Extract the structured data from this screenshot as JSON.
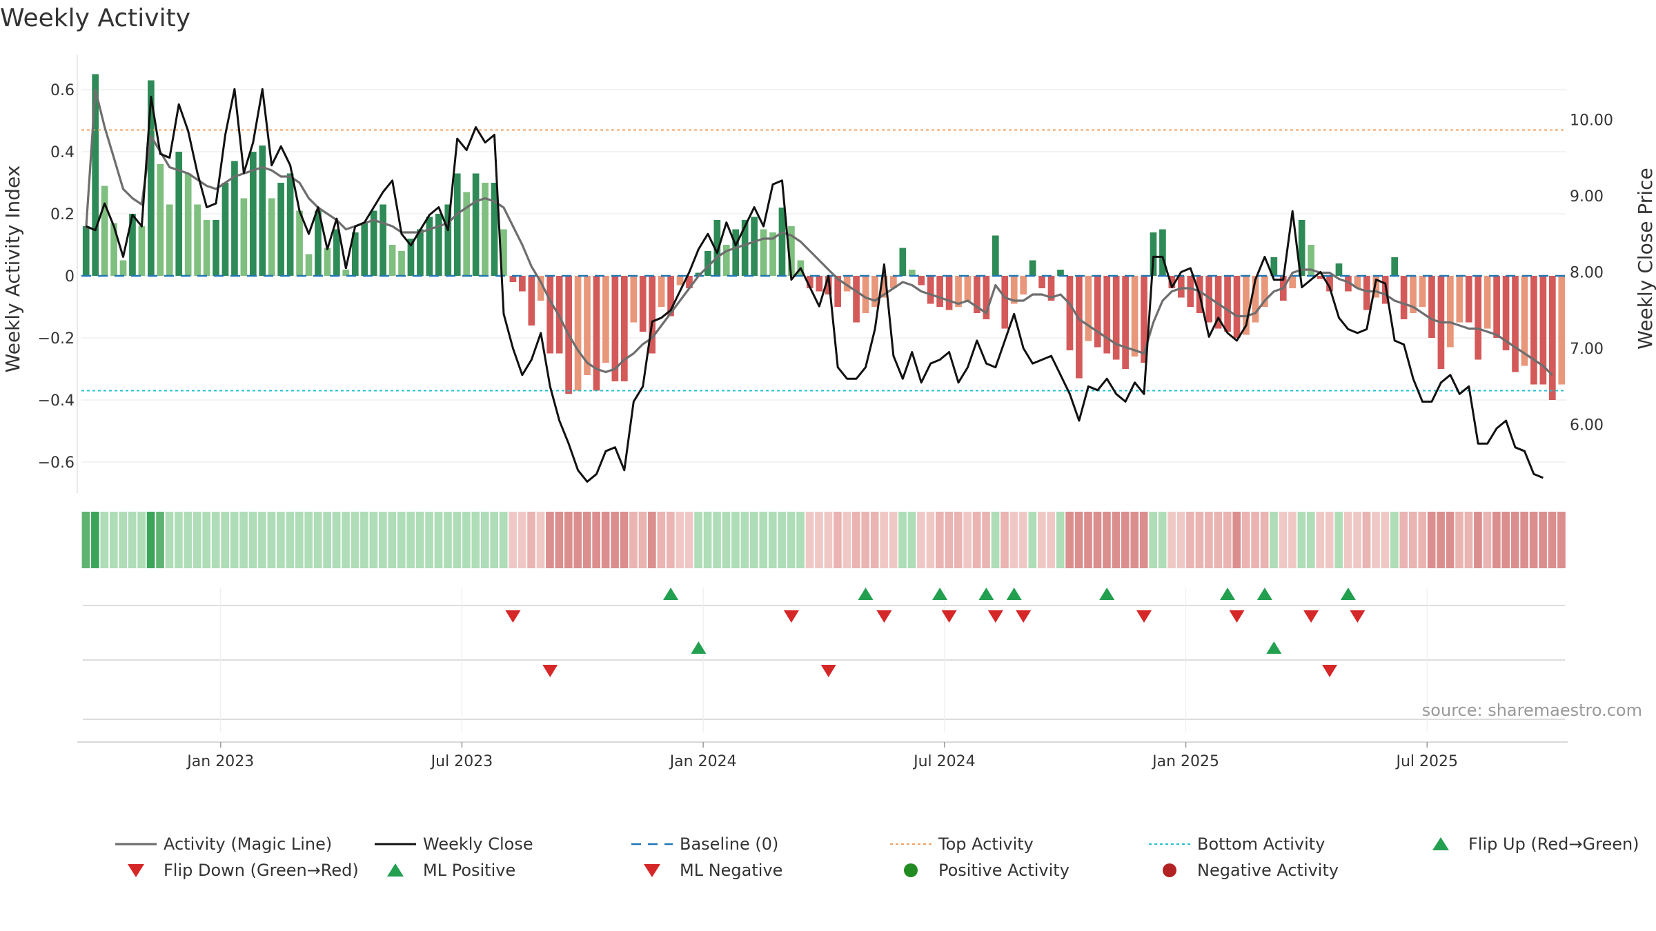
{
  "chart_data": {
    "type": "bar+line",
    "title": "Weekly Activity",
    "ylabel_left": "Weekly Activity Index",
    "ylabel_right": "Weekly Close Price",
    "source": "source: sharemaestro.com",
    "left_axis": {
      "ylim": [
        -0.7,
        0.7
      ],
      "ticks": [
        0.6,
        0.4,
        0.2,
        0,
        -0.2,
        -0.4,
        -0.6
      ],
      "tick_labels": [
        "0.6",
        "0.4",
        "0.2",
        "0",
        "−0.2",
        "−0.4",
        "−0.6"
      ]
    },
    "right_axis": {
      "ylim": [
        5.1,
        10.8
      ],
      "ticks": [
        10,
        9,
        8,
        7,
        6
      ],
      "tick_labels": [
        "10.00",
        "9.00",
        "8.00",
        "7.00",
        "6.00"
      ]
    },
    "x_axis": {
      "tick_labels": [
        "Jan 2023",
        "Jul 2023",
        "Jan 2024",
        "Jul 2024",
        "Jan 2025",
        "Jul 2025"
      ],
      "tick_weeks": [
        15,
        41,
        67,
        93,
        119,
        145
      ]
    },
    "top_activity": 0.47,
    "bottom_activity": -0.37,
    "baseline": 0,
    "colors": {
      "green_strong": "#2e8b57",
      "green_light": "#7fbf7f",
      "red_strong": "#d45a5a",
      "red_light": "#e8977a",
      "magic_line": "#6e6e6e",
      "close_line": "#111111",
      "baseline": "#1f77b4",
      "top": "#f0a060",
      "bottom": "#20c0d0",
      "marker_up": "#22a050",
      "marker_down": "#d62728",
      "positive_dot": "#228b22",
      "negative_dot": "#b22222"
    },
    "weekly_activity": [
      0.16,
      0.65,
      0.29,
      0.17,
      0.05,
      0.2,
      0.16,
      0.63,
      0.36,
      0.23,
      0.4,
      0.33,
      0.23,
      0.18,
      0.18,
      0.3,
      0.37,
      0.25,
      0.4,
      0.42,
      0.25,
      0.3,
      0.33,
      0.21,
      0.07,
      0.21,
      0.09,
      0.15,
      0.02,
      0.14,
      0.17,
      0.21,
      0.23,
      0.1,
      0.08,
      0.12,
      0.15,
      0.19,
      0.2,
      0.23,
      0.33,
      0.27,
      0.33,
      0.3,
      0.3,
      0.15,
      -0.02,
      -0.05,
      -0.16,
      -0.08,
      -0.25,
      -0.25,
      -0.38,
      -0.37,
      -0.32,
      -0.37,
      -0.28,
      -0.34,
      -0.34,
      -0.15,
      -0.18,
      -0.25,
      -0.1,
      -0.13,
      -0.03,
      -0.04,
      0.01,
      0.08,
      0.18,
      0.1,
      0.15,
      0.18,
      0.19,
      0.15,
      0.14,
      0.22,
      0.16,
      0.05,
      -0.04,
      -0.05,
      -0.06,
      -0.1,
      -0.05,
      -0.15,
      -0.12,
      -0.1,
      -0.07,
      -0.04,
      0.09,
      0.02,
      -0.03,
      -0.09,
      -0.1,
      -0.11,
      -0.1,
      -0.08,
      -0.12,
      -0.14,
      0.13,
      -0.17,
      -0.09,
      -0.06,
      0.05,
      -0.04,
      -0.08,
      0.02,
      -0.24,
      -0.33,
      -0.21,
      -0.23,
      -0.25,
      -0.27,
      -0.3,
      -0.26,
      -0.28,
      0.14,
      0.15,
      -0.04,
      -0.07,
      -0.1,
      -0.12,
      -0.15,
      -0.17,
      -0.18,
      -0.2,
      -0.19,
      -0.15,
      -0.1,
      0.06,
      -0.08,
      -0.04,
      0.18,
      0.1,
      -0.01,
      -0.05,
      0.04,
      -0.05,
      -0.04,
      -0.11,
      -0.07,
      -0.09,
      0.06,
      -0.14,
      -0.12,
      -0.1,
      -0.2,
      -0.3,
      -0.23,
      -0.15,
      -0.15,
      -0.27,
      -0.17,
      -0.2,
      -0.24,
      -0.31,
      -0.29,
      -0.35,
      -0.35,
      -0.4,
      -0.35
    ],
    "magic_line": [
      0.15,
      0.6,
      0.48,
      0.38,
      0.28,
      0.25,
      0.23,
      0.45,
      0.4,
      0.35,
      0.34,
      0.33,
      0.31,
      0.29,
      0.28,
      0.3,
      0.32,
      0.33,
      0.34,
      0.35,
      0.34,
      0.32,
      0.32,
      0.3,
      0.25,
      0.22,
      0.2,
      0.18,
      0.15,
      0.16,
      0.17,
      0.18,
      0.17,
      0.16,
      0.14,
      0.14,
      0.14,
      0.15,
      0.16,
      0.17,
      0.2,
      0.22,
      0.24,
      0.25,
      0.24,
      0.22,
      0.16,
      0.1,
      0.03,
      -0.02,
      -0.08,
      -0.13,
      -0.19,
      -0.24,
      -0.28,
      -0.3,
      -0.31,
      -0.3,
      -0.27,
      -0.25,
      -0.22,
      -0.2,
      -0.16,
      -0.12,
      -0.08,
      -0.04,
      0.0,
      0.03,
      0.06,
      0.08,
      0.09,
      0.1,
      0.11,
      0.12,
      0.12,
      0.14,
      0.13,
      0.11,
      0.08,
      0.05,
      0.02,
      -0.01,
      -0.03,
      -0.05,
      -0.07,
      -0.08,
      -0.06,
      -0.04,
      -0.02,
      -0.03,
      -0.05,
      -0.06,
      -0.07,
      -0.08,
      -0.09,
      -0.08,
      -0.1,
      -0.12,
      -0.03,
      -0.07,
      -0.08,
      -0.08,
      -0.06,
      -0.06,
      -0.07,
      -0.06,
      -0.09,
      -0.14,
      -0.16,
      -0.18,
      -0.2,
      -0.22,
      -0.23,
      -0.24,
      -0.25,
      -0.15,
      -0.08,
      -0.05,
      -0.04,
      -0.04,
      -0.05,
      -0.07,
      -0.09,
      -0.11,
      -0.13,
      -0.13,
      -0.12,
      -0.08,
      -0.05,
      -0.04,
      0.01,
      0.02,
      0.02,
      0.01,
      0.01,
      -0.01,
      -0.02,
      -0.04,
      -0.05,
      -0.05,
      -0.06,
      -0.08,
      -0.09,
      -0.1,
      -0.12,
      -0.14,
      -0.15,
      -0.15,
      -0.16,
      -0.17,
      -0.17,
      -0.18,
      -0.19,
      -0.21,
      -0.23,
      -0.25,
      -0.27,
      -0.29,
      -0.32
    ],
    "weekly_close": [
      8.6,
      8.55,
      8.9,
      8.6,
      8.2,
      8.75,
      8.6,
      10.3,
      9.55,
      9.5,
      10.2,
      9.85,
      9.3,
      8.85,
      8.9,
      9.8,
      10.4,
      9.3,
      9.7,
      10.4,
      9.4,
      9.65,
      9.4,
      8.8,
      8.5,
      8.85,
      8.3,
      8.7,
      8.05,
      8.6,
      8.65,
      8.85,
      9.05,
      9.2,
      8.5,
      8.35,
      8.55,
      8.75,
      8.85,
      8.55,
      9.75,
      9.6,
      9.9,
      9.7,
      9.8,
      7.45,
      7.0,
      6.65,
      6.85,
      7.2,
      6.5,
      6.05,
      5.75,
      5.4,
      5.25,
      5.35,
      5.65,
      5.7,
      5.4,
      6.3,
      6.5,
      7.35,
      7.4,
      7.5,
      7.75,
      8.0,
      8.3,
      8.5,
      8.25,
      8.65,
      8.35,
      8.6,
      8.85,
      8.6,
      9.15,
      9.2,
      7.9,
      8.05,
      7.8,
      7.55,
      7.95,
      6.75,
      6.6,
      6.6,
      6.75,
      7.25,
      8.1,
      6.9,
      6.6,
      6.95,
      6.55,
      6.8,
      6.85,
      6.95,
      6.55,
      6.75,
      7.1,
      6.8,
      6.75,
      7.1,
      7.45,
      7.0,
      6.8,
      6.85,
      6.9,
      6.65,
      6.4,
      6.05,
      6.5,
      6.45,
      6.6,
      6.4,
      6.3,
      6.55,
      6.4,
      8.2,
      8.2,
      7.8,
      8.0,
      8.05,
      7.7,
      7.15,
      7.4,
      7.2,
      7.1,
      7.3,
      7.9,
      8.2,
      7.9,
      7.9,
      8.8,
      7.8,
      7.9,
      8.0,
      7.8,
      7.4,
      7.25,
      7.2,
      7.25,
      7.9,
      7.85,
      7.1,
      7.05,
      6.6,
      6.3,
      6.3,
      6.55,
      6.65,
      6.4,
      6.5,
      5.75,
      5.75,
      5.95,
      6.05,
      5.7,
      5.65,
      5.35,
      5.3
    ],
    "strip_intensity": [
      2,
      3,
      1,
      1,
      1,
      1,
      1,
      3,
      2,
      1,
      1,
      1,
      1,
      1,
      1,
      1,
      1,
      1,
      1,
      1,
      1,
      1,
      1,
      1,
      1,
      1,
      1,
      1,
      1,
      1,
      1,
      1,
      1,
      1,
      1,
      1,
      1,
      1,
      1,
      1,
      1,
      1,
      1,
      1,
      1,
      1,
      0,
      0,
      0,
      0,
      0,
      0,
      0,
      0,
      0,
      0,
      0,
      0,
      0,
      0,
      0,
      0,
      0,
      0,
      0,
      0,
      0,
      0,
      0,
      0,
      0,
      0,
      0,
      0,
      0,
      0,
      0,
      0,
      0,
      0,
      0,
      0,
      0,
      0,
      0,
      0,
      0,
      0,
      0,
      0,
      0,
      0,
      0,
      0,
      0,
      0,
      0,
      0,
      0,
      0,
      0,
      0,
      0,
      0,
      0,
      0,
      0,
      0,
      0,
      0,
      0,
      0,
      0,
      0,
      0,
      0,
      0,
      0,
      0,
      0,
      0,
      0,
      0,
      0,
      0,
      0,
      0,
      0,
      0,
      0,
      0,
      0,
      0,
      0,
      0,
      0,
      0,
      0,
      0,
      0,
      0,
      0,
      0,
      0,
      0,
      0,
      0,
      0,
      0,
      0,
      0,
      0,
      0,
      0,
      0,
      0,
      0,
      0
    ],
    "flip_up_weeks": [
      63,
      84,
      92,
      97,
      100,
      110,
      123,
      127,
      136
    ],
    "flip_down_weeks": [
      46,
      76,
      86,
      93,
      98,
      101,
      114,
      124,
      132,
      137
    ],
    "ml_positive_weeks": [
      66,
      128
    ],
    "ml_negative_weeks": [
      50,
      80,
      134
    ],
    "legend": [
      {
        "label": "Activity (Magic Line)",
        "symbol": "line-gray"
      },
      {
        "label": "Weekly Close",
        "symbol": "line-black"
      },
      {
        "label": "Baseline (0)",
        "symbol": "dash-blue"
      },
      {
        "label": "Top Activity",
        "symbol": "dot-orange"
      },
      {
        "label": "Bottom Activity",
        "symbol": "dot-cyan"
      },
      {
        "label": "Flip Up (Red→Green)",
        "symbol": "tri-up-green"
      },
      {
        "label": "Flip Down (Green→Red)",
        "symbol": "tri-down-red"
      },
      {
        "label": "ML Positive",
        "symbol": "tri-up-green"
      },
      {
        "label": "ML Negative",
        "symbol": "tri-down-red"
      },
      {
        "label": "Positive Activity",
        "symbol": "circle-green"
      },
      {
        "label": "Negative Activity",
        "symbol": "circle-red"
      }
    ]
  }
}
